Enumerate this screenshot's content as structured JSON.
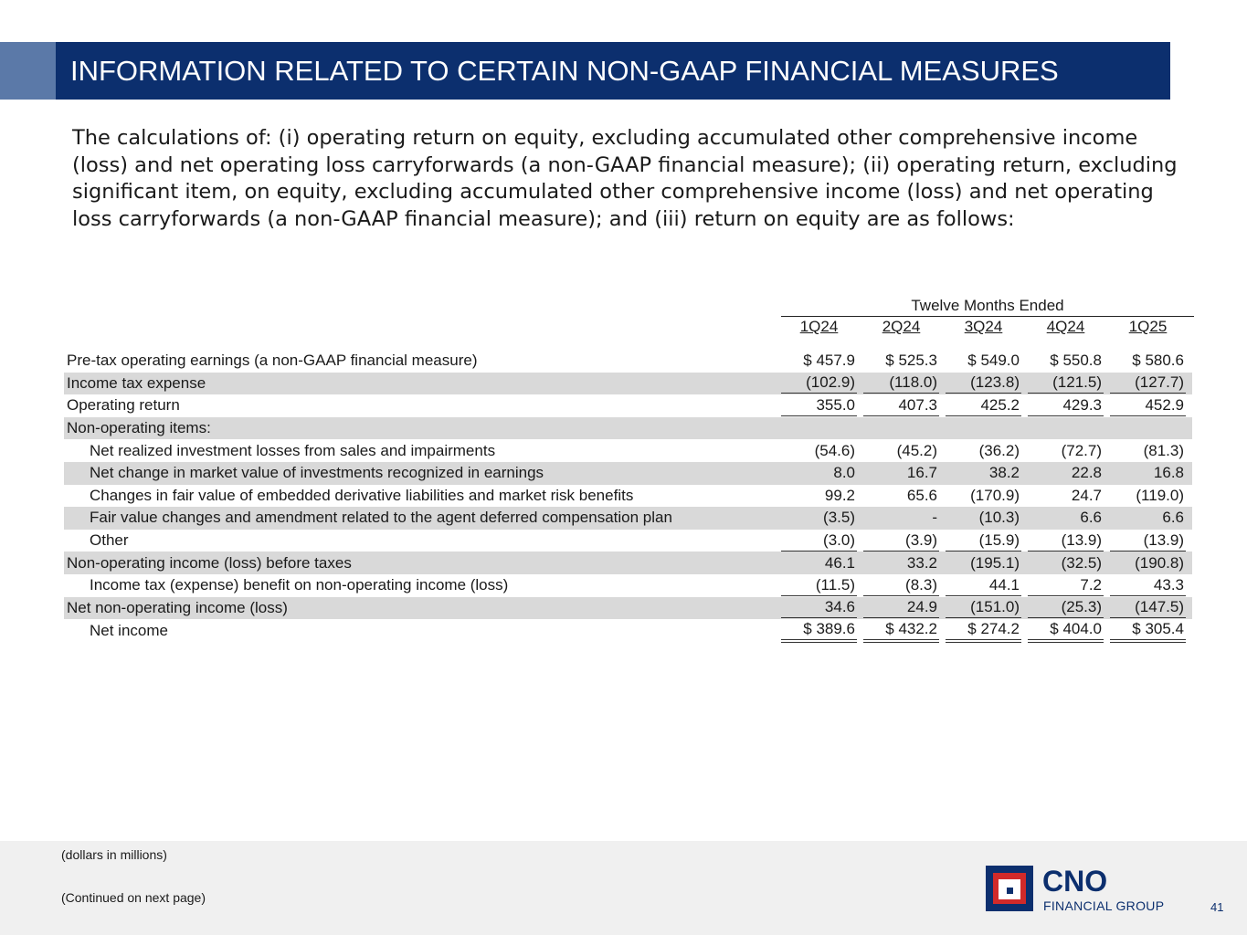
{
  "header": {
    "title": "INFORMATION RELATED TO CERTAIN NON-GAAP FINANCIAL MEASURES"
  },
  "intro": "The calculations of: (i) operating return on equity, excluding accumulated other comprehensive income (loss) and net operating loss carryforwards (a non-GAAP financial measure); (ii) operating return, excluding significant item, on equity, excluding accumulated other comprehensive income (loss) and net operating loss carryforwards (a non-GAAP financial measure); and (iii) return on equity are as follows:",
  "table": {
    "group_header": "Twelve Months Ended",
    "columns": [
      "1Q24",
      "2Q24",
      "3Q24",
      "4Q24",
      "1Q25"
    ],
    "rows": [
      {
        "label": "Pre-tax operating earnings (a non-GAAP financial measure)",
        "values": [
          "$ 457.9",
          "$ 525.3",
          "$ 549.0",
          "$ 550.8",
          "$ 580.6"
        ]
      },
      {
        "label": "Income tax expense",
        "values": [
          "(102.9)",
          "(118.0)",
          "(123.8)",
          "(121.5)",
          "(127.7)"
        ]
      },
      {
        "label": "Operating return",
        "values": [
          "355.0",
          "407.3",
          "425.2",
          "429.3",
          "452.9"
        ]
      },
      {
        "label": "Non-operating items:",
        "values": [
          "",
          "",
          "",
          "",
          ""
        ]
      },
      {
        "label": "Net realized investment losses from sales and impairments",
        "values": [
          "(54.6)",
          "(45.2)",
          "(36.2)",
          "(72.7)",
          "(81.3)"
        ]
      },
      {
        "label": "Net change in market value of investments recognized in earnings",
        "values": [
          "8.0",
          "16.7",
          "38.2",
          "22.8",
          "16.8"
        ]
      },
      {
        "label": "Changes in fair value of embedded derivative liabilities and market risk benefits",
        "values": [
          "99.2",
          "65.6",
          "(170.9)",
          "24.7",
          "(119.0)"
        ]
      },
      {
        "label": "Fair value changes and amendment related to the agent deferred compensation plan",
        "values": [
          "(3.5)",
          "-",
          "(10.3)",
          "6.6",
          "6.6"
        ]
      },
      {
        "label": "Other",
        "values": [
          "(3.0)",
          "(3.9)",
          "(15.9)",
          "(13.9)",
          "(13.9)"
        ]
      },
      {
        "label": "Non-operating income (loss) before taxes",
        "values": [
          "46.1",
          "33.2",
          "(195.1)",
          "(32.5)",
          "(190.8)"
        ]
      },
      {
        "label": "Income tax (expense) benefit on non-operating income (loss)",
        "values": [
          "(11.5)",
          "(8.3)",
          "44.1",
          "7.2",
          "43.3"
        ]
      },
      {
        "label": "Net non-operating income (loss)",
        "values": [
          "34.6",
          "24.9",
          "(151.0)",
          "(25.3)",
          "(147.5)"
        ]
      },
      {
        "label": "Net income",
        "values": [
          "$ 389.6",
          "$ 432.2",
          "$ 274.2",
          "$ 404.0",
          "$ 305.4"
        ]
      }
    ]
  },
  "footer": {
    "note1": "(dollars in millions)",
    "note2": "(Continued on next page)",
    "logo_name": "CNO",
    "logo_sub": "FINANCIAL GROUP",
    "page_number": "41"
  }
}
